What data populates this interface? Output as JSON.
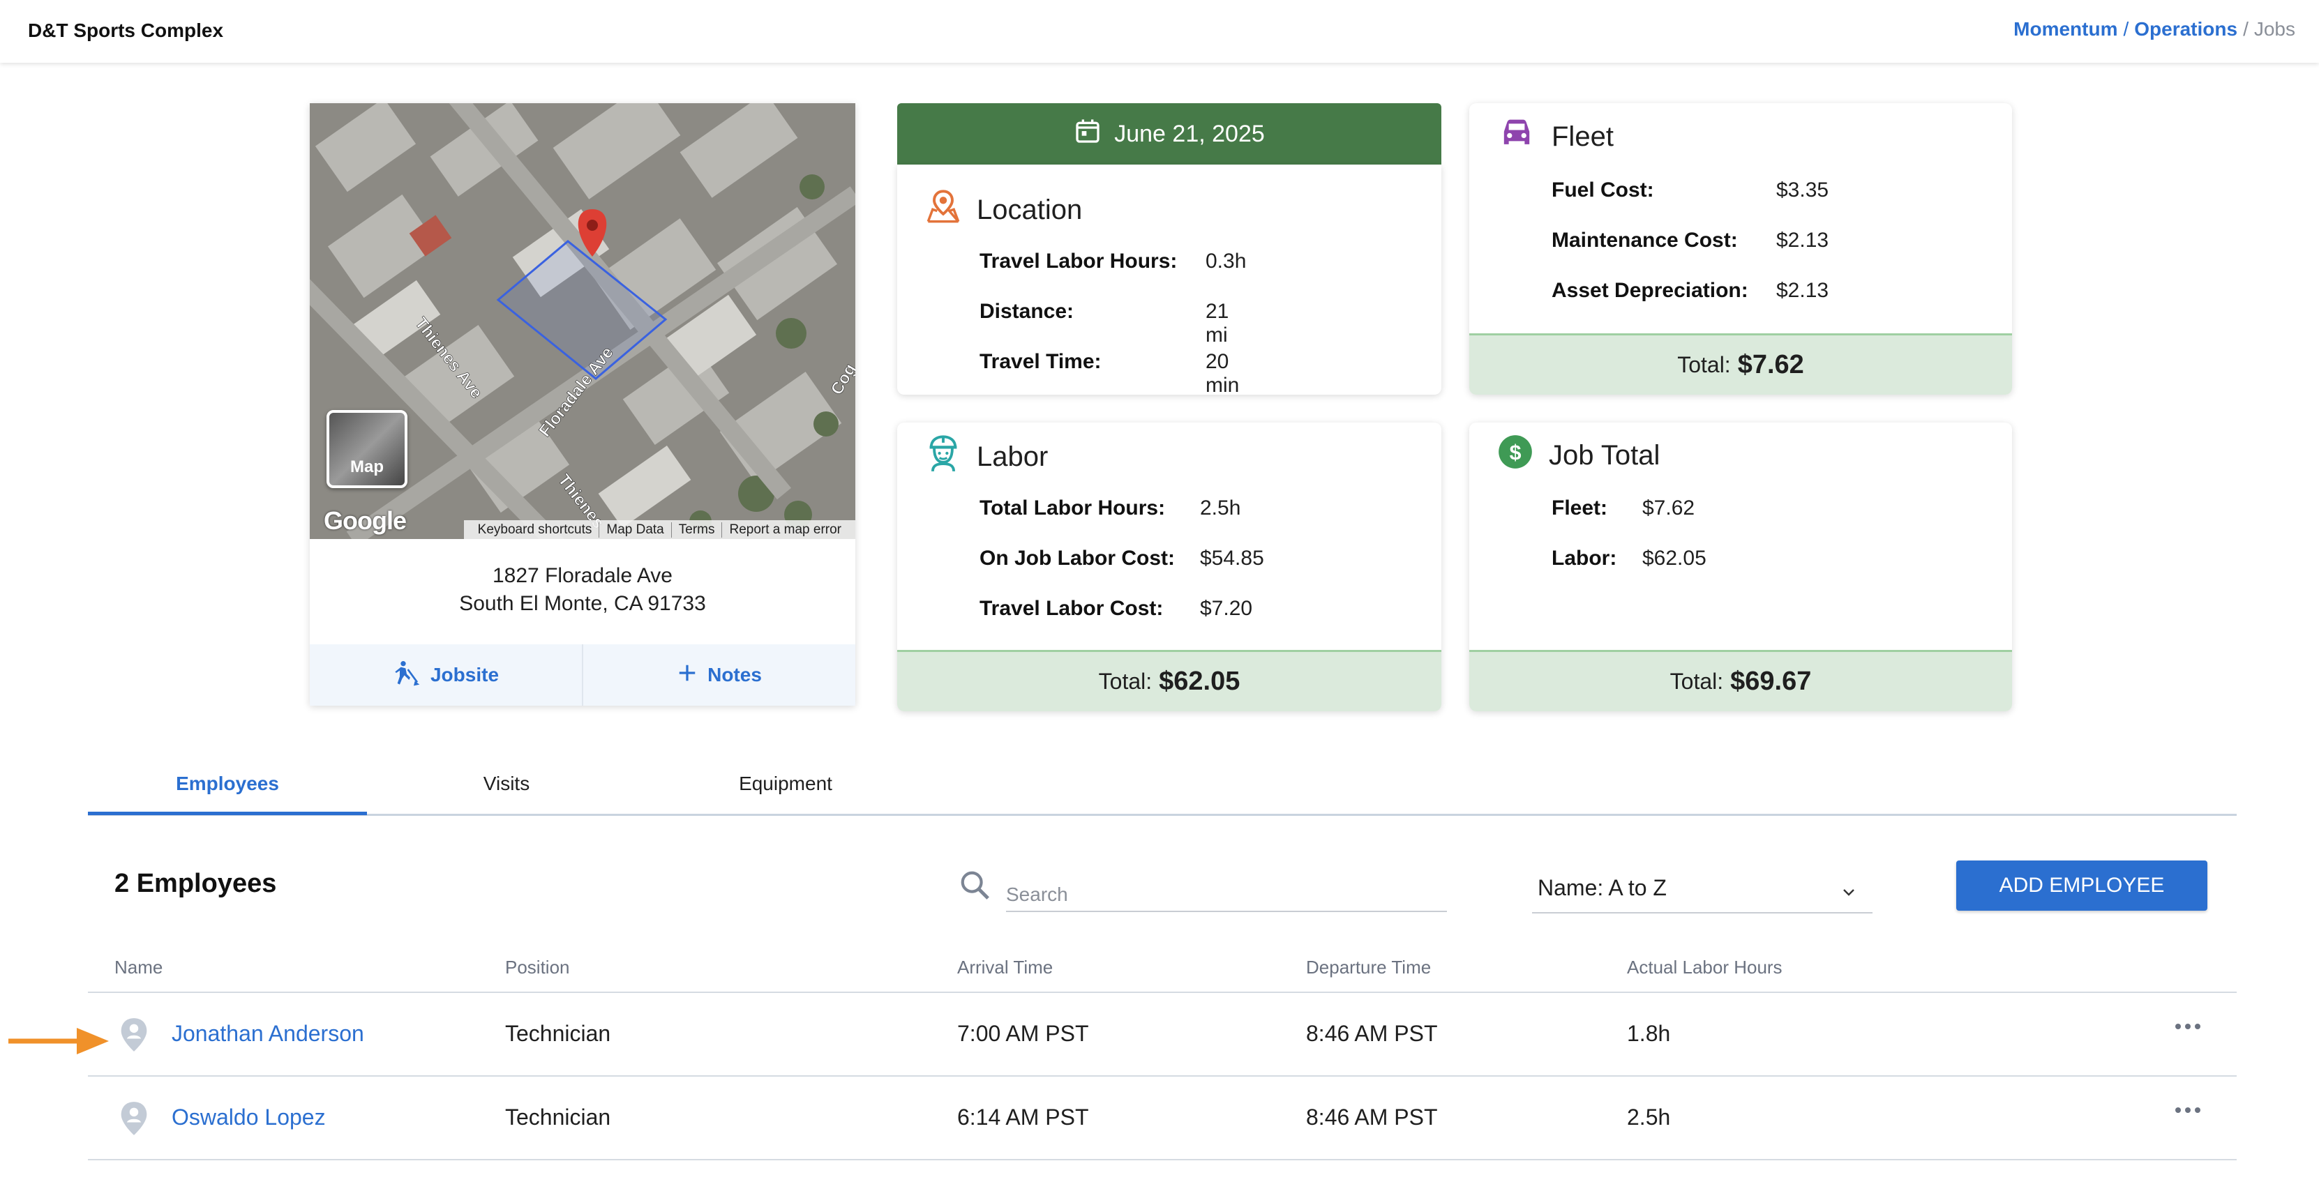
{
  "header": {
    "app_title": "D&T Sports Complex",
    "breadcrumb": [
      "Momentum",
      "Operations",
      "Jobs"
    ]
  },
  "map": {
    "toggle_label": "Map",
    "google_logo": "Google",
    "street_labels": [
      "Thienes Ave",
      "Floradale Ave",
      "Thienes",
      "Cog"
    ],
    "attribution": [
      "Keyboard shortcuts",
      "Map Data",
      "Terms",
      "Report a map error"
    ],
    "address_line1": "1827 Floradale Ave",
    "address_line2": "South El Monte, CA 91733",
    "actions": {
      "jobsite_label": "Jobsite",
      "jobsite_icon": "person-digging-icon",
      "notes_label": "Notes",
      "notes_icon": "plus-icon"
    }
  },
  "date": {
    "label": "June 21, 2025",
    "icon": "calendar-icon",
    "color": "#467a48"
  },
  "location": {
    "title": "Location",
    "icon": "map-pin-icon",
    "icon_color": "#e3733a",
    "rows": [
      {
        "label": "Travel Labor Hours:",
        "value": "0.3h"
      },
      {
        "label": "Distance:",
        "value": "21 mi"
      },
      {
        "label": "Travel Time:",
        "value": "20 min"
      }
    ]
  },
  "fleet": {
    "title": "Fleet",
    "icon": "car-icon",
    "icon_color": "#8e44ad",
    "rows": [
      {
        "label": "Fuel Cost:",
        "value": "$3.35"
      },
      {
        "label": "Maintenance Cost:",
        "value": "$2.13"
      },
      {
        "label": "Asset Depreciation:",
        "value": "$2.13"
      }
    ],
    "total_label": "Total:",
    "total_value": "$7.62"
  },
  "labor": {
    "title": "Labor",
    "icon": "worker-icon",
    "icon_color": "#2aa6a6",
    "rows": [
      {
        "label": "Total Labor Hours:",
        "value": "2.5h"
      },
      {
        "label": "On Job Labor Cost:",
        "value": "$54.85"
      },
      {
        "label": "Travel Labor Cost:",
        "value": "$7.20"
      }
    ],
    "total_label": "Total:",
    "total_value": "$62.05"
  },
  "job_total": {
    "title": "Job Total",
    "icon": "dollar-icon",
    "icon_color": "#3f9a55",
    "rows": [
      {
        "label": "Fleet:",
        "value": "$7.62"
      },
      {
        "label": "Labor:",
        "value": "$62.05"
      }
    ],
    "total_label": "Total:",
    "total_value": "$69.67"
  },
  "tabs": {
    "items": [
      "Employees",
      "Visits",
      "Equipment"
    ],
    "active": "Employees"
  },
  "employees": {
    "count_label": "2 Employees",
    "search_placeholder": "Search",
    "sort_value": "Name: A to Z",
    "add_button": "ADD EMPLOYEE",
    "columns": [
      "Name",
      "Position",
      "Arrival Time",
      "Departure Time",
      "Actual Labor Hours"
    ],
    "rows": [
      {
        "name": "Jonathan Anderson",
        "position": "Technician",
        "arrival": "7:00 AM PST",
        "departure": "8:46 AM PST",
        "hours": "1.8h"
      },
      {
        "name": "Oswaldo Lopez",
        "position": "Technician",
        "arrival": "6:14 AM PST",
        "departure": "8:46 AM PST",
        "hours": "2.5h"
      }
    ]
  },
  "colors": {
    "accent": "#2b6fd0",
    "total_bg": "#dbeadc",
    "annotation_arrow": "#f0912a"
  }
}
